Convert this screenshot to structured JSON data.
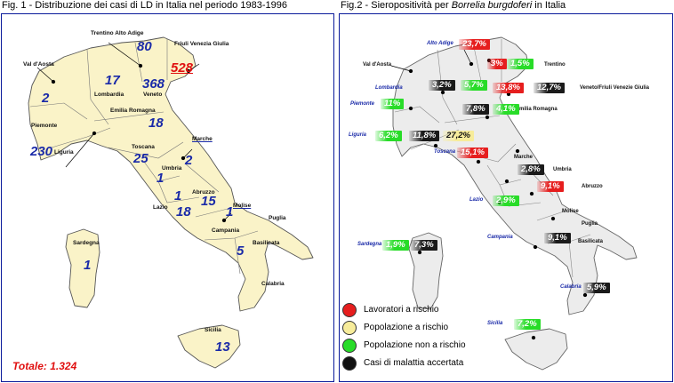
{
  "fig1": {
    "title": "Fig. 1 - Distribuzione dei casi di LD in Italia nel periodo 1983-1996",
    "regions": [
      {
        "id": "trentino",
        "name": "Trentino Alto Adige",
        "count": "80"
      },
      {
        "id": "friuli",
        "name": "Friuli Venezia Giulia",
        "count": "528"
      },
      {
        "id": "valdaosta",
        "name": "Val d'Aosta",
        "count": ""
      },
      {
        "id": "lombardia",
        "name": "Lombardia",
        "count": "17"
      },
      {
        "id": "veneto",
        "name": "Veneto",
        "count": "368"
      },
      {
        "id": "piemonte",
        "name": "Piemonte",
        "count": "2"
      },
      {
        "id": "emilia",
        "name": "Emilia Romagna",
        "count": "18"
      },
      {
        "id": "liguria",
        "name": "Liguria",
        "count": "230"
      },
      {
        "id": "marche",
        "name": "Marche",
        "count": "2"
      },
      {
        "id": "toscana",
        "name": "Toscana",
        "count": "25"
      },
      {
        "id": "umbria",
        "name": "Umbria",
        "count": "1"
      },
      {
        "id": "lazio",
        "name": "Lazio",
        "count": "18"
      },
      {
        "id": "abruzzo",
        "name": "Abruzzo",
        "count": "15"
      },
      {
        "id": "molise",
        "name": "Molise",
        "count": "1"
      },
      {
        "id": "campania",
        "name": "Campania",
        "count": "5"
      },
      {
        "id": "puglia",
        "name": "Puglia",
        "count": ""
      },
      {
        "id": "basilicata",
        "name": "Basilicata",
        "count": ""
      },
      {
        "id": "calabria",
        "name": "Calabria",
        "count": ""
      },
      {
        "id": "sardegna",
        "name": "Sardegna",
        "count": "1"
      },
      {
        "id": "sicilia",
        "name": "Sicilia",
        "count": "13"
      }
    ],
    "total": "Totale: 1.324",
    "map_fill": "#faf3c8"
  },
  "fig2": {
    "title_prefix": "Fig.2 - Sieropositività per ",
    "title_italic": "Borrelia burgdoferi",
    "title_suffix": " in Italia",
    "map_fill": "#ececec",
    "region_labels": [
      {
        "id": "altoadige",
        "name": "Alto Adige"
      },
      {
        "id": "valdaosta",
        "name": "Val d'Aosta"
      },
      {
        "id": "trentino",
        "name": "Trentino"
      },
      {
        "id": "lombardia",
        "name": "Lombardia"
      },
      {
        "id": "venfvg",
        "name": "Veneto/Friuli Venezie Giulia"
      },
      {
        "id": "piemonte",
        "name": "Piemonte"
      },
      {
        "id": "emilia",
        "name": "Emilia Romagna"
      },
      {
        "id": "liguria",
        "name": "Liguria"
      },
      {
        "id": "toscana",
        "name": "Toscana"
      },
      {
        "id": "marche",
        "name": "Marche"
      },
      {
        "id": "umbria",
        "name": "Umbria"
      },
      {
        "id": "abruzzo",
        "name": "Abruzzo"
      },
      {
        "id": "lazio",
        "name": "Lazio"
      },
      {
        "id": "molise",
        "name": "Molise"
      },
      {
        "id": "puglia",
        "name": "Puglia"
      },
      {
        "id": "sardegna",
        "name": "Sardegna"
      },
      {
        "id": "campania",
        "name": "Campania"
      },
      {
        "id": "basilicata",
        "name": "Basilicata"
      },
      {
        "id": "calabria",
        "name": "Calabria"
      },
      {
        "id": "sicilia",
        "name": "Sicilia"
      }
    ],
    "values": [
      {
        "id": "altoadige-red",
        "region": "Alto Adige",
        "category": "red",
        "value": "23,7%"
      },
      {
        "id": "trentino-red",
        "region": "Trentino",
        "category": "red",
        "value": "3%"
      },
      {
        "id": "trentino-green",
        "region": "Trentino",
        "category": "green",
        "value": "1,5%"
      },
      {
        "id": "lombardia-black",
        "region": "Lombardia",
        "category": "black",
        "value": "3,2%"
      },
      {
        "id": "lombardia-green",
        "region": "Lombardia",
        "category": "green",
        "value": "5,7%"
      },
      {
        "id": "venfvg-red",
        "region": "Veneto/Friuli Venezie Giulia",
        "category": "red",
        "value": "13,8%"
      },
      {
        "id": "venfvg-black",
        "region": "Veneto/Friuli Venezie Giulia",
        "category": "black",
        "value": "12,7%"
      },
      {
        "id": "piemonte-green",
        "region": "Piemonte",
        "category": "green",
        "value": "11%"
      },
      {
        "id": "emilia-black",
        "region": "Emilia Romagna",
        "category": "black",
        "value": "7,8%"
      },
      {
        "id": "emilia-green",
        "region": "Emilia Romagna",
        "category": "green",
        "value": "4,1%"
      },
      {
        "id": "liguria-green",
        "region": "Liguria",
        "category": "green",
        "value": "6,2%"
      },
      {
        "id": "liguria-black",
        "region": "Liguria",
        "category": "black",
        "value": "11,8%"
      },
      {
        "id": "liguria-yellow",
        "region": "Liguria",
        "category": "yellow",
        "value": "27,2%"
      },
      {
        "id": "toscana-red",
        "region": "Toscana",
        "category": "red",
        "value": "15,1%"
      },
      {
        "id": "umbria-black",
        "region": "Umbria",
        "category": "black",
        "value": "2,8%"
      },
      {
        "id": "abruzzo-red",
        "region": "Abruzzo",
        "category": "red",
        "value": "9,1%"
      },
      {
        "id": "lazio-green",
        "region": "Lazio",
        "category": "green",
        "value": "2,9%"
      },
      {
        "id": "sardegna-green",
        "region": "Sardegna",
        "category": "green",
        "value": "1,9%"
      },
      {
        "id": "sardegna-black",
        "region": "Sardegna",
        "category": "black",
        "value": "7,3%"
      },
      {
        "id": "campania-black",
        "region": "Campania",
        "category": "black",
        "value": "9,1%"
      },
      {
        "id": "calabria-black",
        "region": "Calabria",
        "category": "black",
        "value": "5,9%"
      },
      {
        "id": "sicilia-green",
        "region": "Sicilia",
        "category": "green",
        "value": "7,2%"
      }
    ],
    "legend": [
      {
        "id": "red",
        "label": "Lavoratori a rischio",
        "color": "#e61e1e"
      },
      {
        "id": "yellow",
        "label": "Popolazione a rischio",
        "color": "#f7ec9a"
      },
      {
        "id": "green",
        "label": "Popolazione non a rischio",
        "color": "#28dc28"
      },
      {
        "id": "black",
        "label": "Casi di malattia accertata",
        "color": "#111111"
      }
    ]
  },
  "colors": {
    "frame": "#0a1a9a",
    "count_text": "#1a2aa8",
    "highlight": "#e01010"
  }
}
